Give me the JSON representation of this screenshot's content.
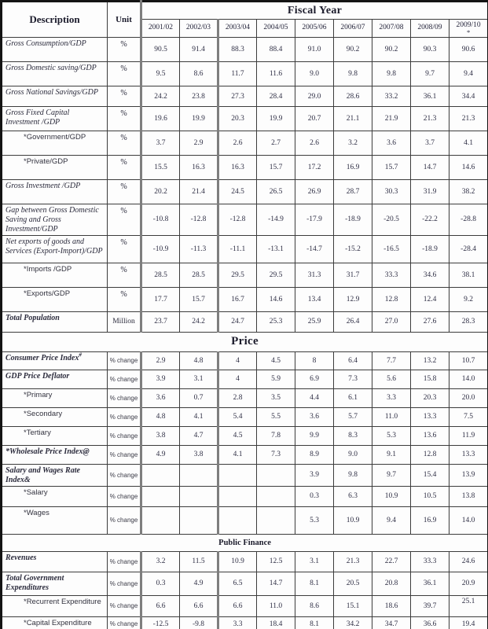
{
  "table": {
    "headers": {
      "description": "Description",
      "unit": "Unit",
      "fiscal_year": "Fiscal Year",
      "years": [
        "2001/02",
        "2002/03",
        "2003/04",
        "2004/05",
        "2005/06",
        "2006/07",
        "2007/08",
        "2008/09",
        "2009/10"
      ],
      "last_year_footnote": "*"
    },
    "rows": [
      {
        "type": "data",
        "label": "Gross Consumption/GDP",
        "style": "main",
        "unit": "%",
        "values": [
          "90.5",
          "91.4",
          "88.3",
          "88.4",
          "91.0",
          "90.2",
          "90.2",
          "90.3",
          "90.6"
        ]
      },
      {
        "type": "data",
        "label": "Gross Domestic saving/GDP",
        "style": "main",
        "unit": "%",
        "values": [
          "9.5",
          "8.6",
          "11.7",
          "11.6",
          "9.0",
          "9.8",
          "9.8",
          "9.7",
          "9.4"
        ]
      },
      {
        "type": "data",
        "label": "Gross National Savings/GDP",
        "style": "main",
        "unit": "%",
        "values": [
          "24.2",
          "23.8",
          "27.3",
          "28.4",
          "29.0",
          "28.6",
          "33.2",
          "36.1",
          "34.4"
        ]
      },
      {
        "type": "data",
        "label": "Gross Fixed Capital Investment /GDP",
        "style": "main",
        "unit": "%",
        "values": [
          "19.6",
          "19.9",
          "20.3",
          "19.9",
          "20.7",
          "21.1",
          "21.9",
          "21.3",
          "21.3"
        ]
      },
      {
        "type": "data",
        "label": "*Government/GDP",
        "style": "sub",
        "indent": true,
        "unit": "%",
        "values": [
          "3.7",
          "2.9",
          "2.6",
          "2.7",
          "2.6",
          "3.2",
          "3.6",
          "3.7",
          "4.1"
        ]
      },
      {
        "type": "data",
        "label": "*Private/GDP",
        "style": "sub",
        "indent": true,
        "unit": "%",
        "values": [
          "15.5",
          "16.3",
          "16.3",
          "15.7",
          "17.2",
          "16.9",
          "15.7",
          "14.7",
          "14.6"
        ]
      },
      {
        "type": "data",
        "label": "Gross Investment /GDP",
        "style": "main",
        "unit": "%",
        "values": [
          "20.2",
          "21.4",
          "24.5",
          "26.5",
          "26.9",
          "28.7",
          "30.3",
          "31.9",
          "38.2"
        ]
      },
      {
        "type": "data",
        "label": "Gap between Gross Domestic Saving and Gross Investment/GDP",
        "style": "main",
        "unit": "%",
        "values": [
          "-10.8",
          "-12.8",
          "-12.8",
          "-14.9",
          "-17.9",
          "-18.9",
          "-20.5",
          "-22.2",
          "-28.8"
        ]
      },
      {
        "type": "data",
        "label": "Net exports of goods and Services (Export-Import)/GDP",
        "style": "main",
        "unit": "%",
        "values": [
          "-10.9",
          "-11.3",
          "-11.1",
          "-13.1",
          "-14.7",
          "-15.2",
          "-16.5",
          "-18.9",
          "-28.4"
        ]
      },
      {
        "type": "data",
        "label": "*Imports /GDP",
        "style": "sub",
        "indent": true,
        "unit": "%",
        "values": [
          "28.5",
          "28.5",
          "29.5",
          "29.5",
          "31.3",
          "31.7",
          "33.3",
          "34.6",
          "38.1"
        ]
      },
      {
        "type": "data",
        "label": "*Exports/GDP",
        "style": "sub",
        "indent": true,
        "unit": "%",
        "values": [
          "17.7",
          "15.7",
          "16.7",
          "14.6",
          "13.4",
          "12.9",
          "12.8",
          "12.4",
          "9.2"
        ]
      },
      {
        "type": "data",
        "label": "Total Population",
        "style": "main-bold",
        "unit": "Million",
        "values": [
          "23.7",
          "24.2",
          "24.7",
          "25.3",
          "25.9",
          "26.4",
          "27.0",
          "27.6",
          "28.3"
        ]
      },
      {
        "type": "section",
        "label": "Price",
        "size": "large"
      },
      {
        "type": "data",
        "label": "Consumer Price Index",
        "sup": "#",
        "style": "main-bold",
        "unit": "% change",
        "values": [
          "2.9",
          "4.8",
          "4",
          "4.5",
          "8",
          "6.4",
          "7.7",
          "13.2",
          "10.7"
        ]
      },
      {
        "type": "data",
        "label": "GDP Price Deflator",
        "style": "main-bold",
        "unit": "% change",
        "values": [
          "3.9",
          "3.1",
          "4",
          "5.9",
          "6.9",
          "7.3",
          "5.6",
          "15.8",
          "14.0"
        ]
      },
      {
        "type": "data",
        "label": "*Primary",
        "style": "sub",
        "indent": true,
        "unit": "% change",
        "values": [
          "3.6",
          "0.7",
          "2.8",
          "3.5",
          "4.4",
          "6.1",
          "3.3",
          "20.3",
          "20.0"
        ]
      },
      {
        "type": "data",
        "label": "*Secondary",
        "style": "sub",
        "indent": true,
        "unit": "% change",
        "values": [
          "4.8",
          "4.1",
          "5.4",
          "5.5",
          "3.6",
          "5.7",
          "11.0",
          "13.3",
          "7.5"
        ]
      },
      {
        "type": "data",
        "label": "*Tertiary",
        "style": "sub",
        "indent": true,
        "unit": "% change",
        "values": [
          "3.8",
          "4.7",
          "4.5",
          "7.8",
          "9.9",
          "8.3",
          "5.3",
          "13.6",
          "11.9"
        ]
      },
      {
        "type": "data",
        "label": "*Wholesale Price Index@",
        "style": "main-bold",
        "unit": "% change",
        "values": [
          "4.9",
          "3.8",
          "4.1",
          "7.3",
          "8.9",
          "9.0",
          "9.1",
          "12.8",
          "13.3"
        ]
      },
      {
        "type": "data",
        "label": "Salary and Wages Rate Index&",
        "style": "main-bold",
        "unit": "% change",
        "values": [
          "",
          "",
          "",
          "",
          "3.9",
          "9.8",
          "9.7",
          "15.4",
          "13.9"
        ]
      },
      {
        "type": "data",
        "label": "*Salary",
        "style": "sub",
        "indent": true,
        "unit": "% change",
        "values": [
          "",
          "",
          "",
          "",
          "0.3",
          "6.3",
          "10.9",
          "10.5",
          "13.8"
        ]
      },
      {
        "type": "data",
        "label": "*Wages",
        "style": "sub",
        "indent": true,
        "unit": "% change",
        "values": [
          "",
          "",
          "",
          "",
          "5.3",
          "10.9",
          "9.4",
          "16.9",
          "14.0"
        ]
      },
      {
        "type": "section",
        "label": "Public Finance",
        "size": "small"
      },
      {
        "type": "data",
        "label": "Revenues",
        "style": "main-bold",
        "unit": "% change",
        "values": [
          "3.2",
          "11.5",
          "10.9",
          "12.5",
          "3.1",
          "21.3",
          "22.7",
          "33.3",
          "24.6"
        ]
      },
      {
        "type": "data",
        "label": "Total Government Expenditures",
        "style": "main-bold",
        "unit": "% change",
        "values": [
          "0.3",
          "4.9",
          "6.5",
          "14.7",
          "8.1",
          "20.5",
          "20.8",
          "36.1",
          "20.9"
        ]
      },
      {
        "type": "data",
        "label": "*Recurrent Expenditure",
        "style": "sub",
        "indent": true,
        "unit": "% change",
        "last_top": true,
        "values": [
          "6.6",
          "6.6",
          "6.6",
          "11.0",
          "8.6",
          "15.1",
          "18.6",
          "39.7",
          "25.1"
        ]
      },
      {
        "type": "data",
        "label": "*Capital Expenditure",
        "style": "sub",
        "indent": true,
        "unit": "% change",
        "values": [
          "-12.5",
          "-9.8",
          "3.3",
          "18.4",
          "8.1",
          "34.2",
          "34.7",
          "36.6",
          "19.4"
        ]
      }
    ],
    "accent_colors": {
      "outer_border": "#141414",
      "grid_line": "#3c3c3c",
      "heavy_divider": "#7e7e7e",
      "text": "#2b2b3c"
    }
  }
}
